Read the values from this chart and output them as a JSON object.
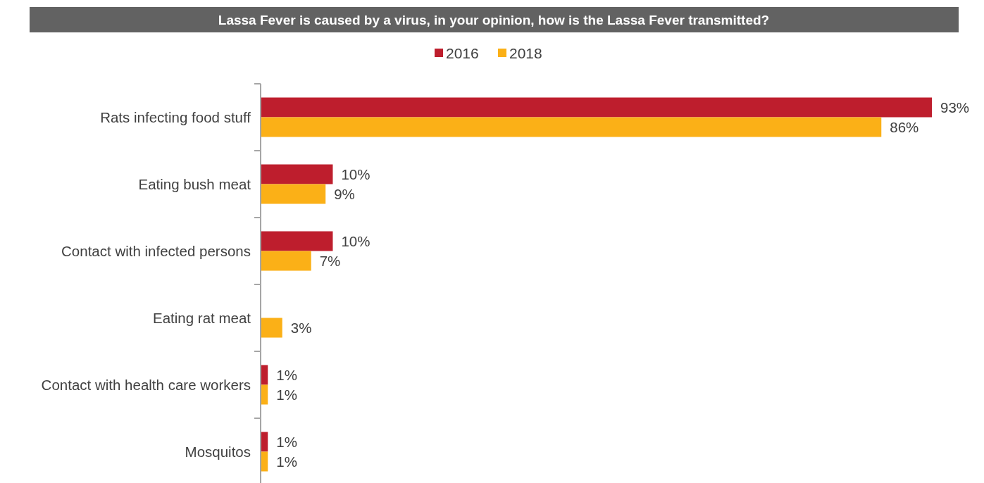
{
  "chart_data": {
    "type": "bar",
    "orientation": "horizontal",
    "title": "Lassa Fever is caused by a virus, in your opinion, how is the Lassa Fever transmitted?",
    "categories": [
      "Rats infecting food stuff",
      "Eating bush meat",
      "Contact with infected persons",
      "Eating rat meat",
      "Contact with health care workers",
      "Mosquitos"
    ],
    "series": [
      {
        "name": "2016",
        "color": "#be1e2d",
        "values": [
          93,
          10,
          10,
          null,
          1,
          1
        ],
        "value_labels": [
          "93%",
          "10%",
          "10%",
          null,
          "1%",
          "1%"
        ]
      },
      {
        "name": "2018",
        "color": "#fbb017",
        "values": [
          86,
          9,
          7,
          3,
          1,
          1
        ],
        "value_labels": [
          "86%",
          "9%",
          "7%",
          "3%",
          "1%",
          "1%"
        ]
      }
    ],
    "legend": "top"
  }
}
